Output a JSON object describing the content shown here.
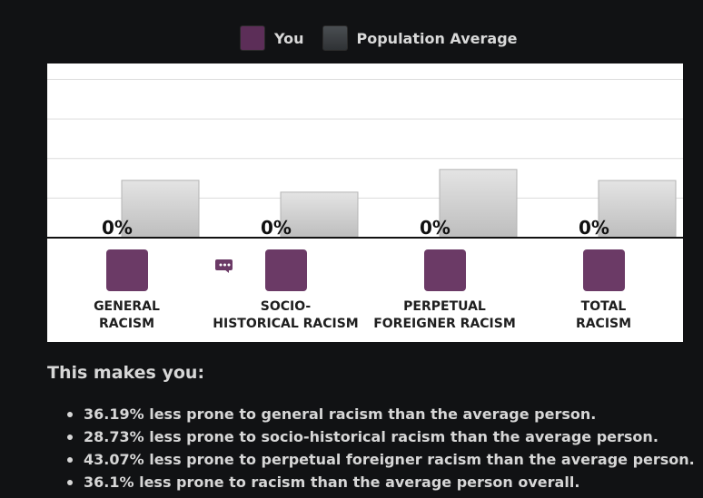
{
  "legend": {
    "you": {
      "label": "You",
      "color": "#5c2e58"
    },
    "average": {
      "label": "Population Average",
      "color": "#3a3d40"
    }
  },
  "chart_data": {
    "type": "bar",
    "categories": [
      "GENERAL RACISM",
      "SOCIO-HISTORICAL RACISM",
      "PERPETUAL FOREIGNER RACISM",
      "TOTAL RACISM"
    ],
    "series": [
      {
        "name": "You",
        "values": [
          0,
          0,
          0,
          0
        ]
      },
      {
        "name": "Population Average",
        "values": [
          36.19,
          28.73,
          43.07,
          36.1
        ]
      }
    ],
    "data_labels": [
      "0%",
      "0%",
      "0%",
      "0%"
    ],
    "ylim": [
      0,
      110
    ],
    "grid": true,
    "legend_position": "top-center"
  },
  "categories": [
    {
      "label": "GENERAL\nRACISM",
      "icon": "not-equal-icon"
    },
    {
      "label": "SOCIO-\nHISTORICAL RACISM",
      "icon": "chat-bubbles-icon"
    },
    {
      "label": "PERPETUAL\nFOREIGNER RACISM",
      "icon": "globe-icon"
    },
    {
      "label": "TOTAL\nRACISM",
      "icon": "line-graph-icon"
    }
  ],
  "summary": {
    "title": "This makes you:",
    "items": [
      "36.19% less prone to general racism than the average person.",
      "28.73% less prone to socio-historical racism than the average person.",
      "43.07% less prone to perpetual foreigner racism than the average person.",
      "36.1% less prone to racism than the average person overall."
    ]
  }
}
